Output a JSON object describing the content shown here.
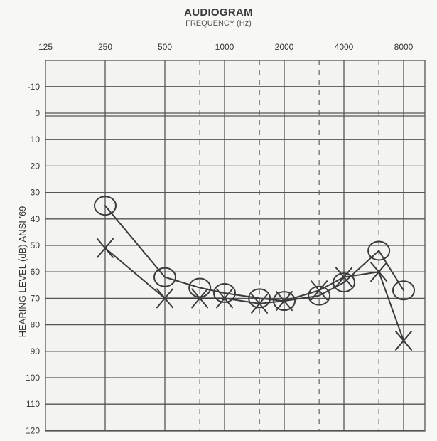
{
  "chart_data": {
    "type": "line",
    "title": "AUDIOGRAM",
    "subtitle": "FREQUENCY (Hz)",
    "xlabel": "FREQUENCY (Hz)",
    "ylabel": "HEARING LEVEL (dB) ANSI '69",
    "x_scale": "log2",
    "x_ticks": [
      125,
      250,
      500,
      1000,
      2000,
      4000,
      8000
    ],
    "x_tick_labels": [
      "125",
      "250",
      "500",
      "1000",
      "2000",
      "4000",
      "8000"
    ],
    "intermediate_frequencies": [
      750,
      1500,
      3000,
      6000
    ],
    "y_ticks": [
      -10,
      0,
      10,
      20,
      30,
      40,
      50,
      60,
      70,
      80,
      90,
      100,
      110,
      120
    ],
    "y_tick_labels": [
      "-10",
      "0",
      "10",
      "20",
      "30",
      "40",
      "50",
      "60",
      "70",
      "80",
      "90",
      "100",
      "110",
      "120"
    ],
    "ylim": [
      -20,
      120
    ],
    "y_inverted": true,
    "grid": true,
    "series": [
      {
        "marker": "circle",
        "x": [
          250,
          500,
          750,
          1000,
          1500,
          2000,
          3000,
          4000,
          6000,
          8000
        ],
        "values": [
          35,
          62,
          66,
          68,
          70,
          71,
          69,
          64,
          52,
          67
        ]
      },
      {
        "marker": "x",
        "x": [
          250,
          500,
          750,
          1000,
          1500,
          2000,
          3000,
          4000,
          6000,
          8000
        ],
        "values": [
          51,
          70,
          70,
          70,
          72,
          71,
          67,
          62,
          60,
          86
        ]
      }
    ]
  }
}
